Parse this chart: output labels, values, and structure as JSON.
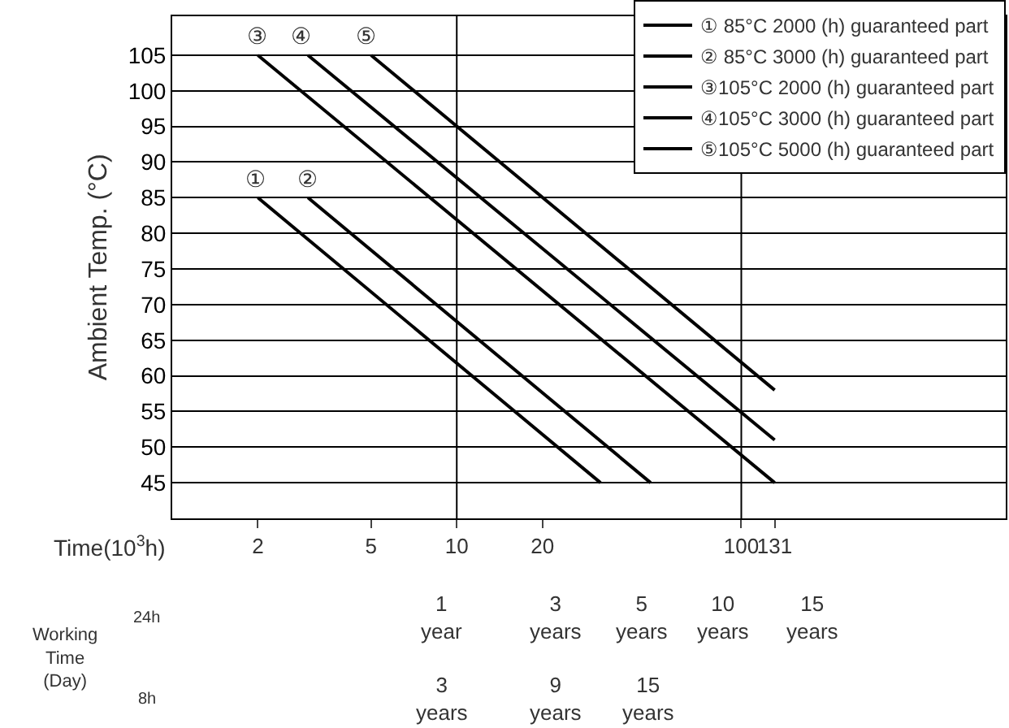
{
  "chart_data": {
    "type": "line",
    "ylabel": "Ambient Temp. (°C)",
    "xlabel": "Time(10$^{3}$h)",
    "log": "x",
    "xlim": [
      1,
      850
    ],
    "xticks": [
      2,
      5,
      10,
      20,
      100,
      131
    ],
    "ylim": [
      40,
      110.5
    ],
    "yticks": [
      45,
      50,
      55,
      60,
      65,
      70,
      75,
      80,
      85,
      90,
      95,
      100,
      105
    ],
    "grid": "y",
    "legend": "top right",
    "marker": "none",
    "line_style": "solid",
    "series": [
      {
        "name": "① 85°C 2000 (h) guaranteed part",
        "color": "#000000",
        "x": [
          2,
          32
        ],
        "values": [
          85,
          45
        ]
      },
      {
        "name": "② 85°C 3000 (h) guaranteed part",
        "color": "#000000",
        "x": [
          3,
          48
        ],
        "values": [
          85,
          45
        ]
      },
      {
        "name": "③105°C 2000 (h) guaranteed part",
        "color": "#000000",
        "x": [
          2,
          131
        ],
        "values": [
          105,
          45
        ]
      },
      {
        "name": "④105°C 3000 (h) guaranteed part",
        "color": "#000000",
        "x": [
          3,
          131
        ],
        "values": [
          105,
          51
        ]
      },
      {
        "name": "⑤105°C 5000 (h) guaranteed part",
        "color": "#000000",
        "x": [
          5,
          131
        ],
        "values": [
          105,
          58
        ]
      }
    ],
    "ref_lines": [
      {
        "axis": "x",
        "value": 10,
        "color": "#000000"
      },
      {
        "axis": "x",
        "value": 100,
        "color": "#000000"
      }
    ],
    "annotations": [
      "Working\nTime\n(Day)",
      "24h",
      "8h",
      "1\nyear",
      "3\nyears",
      "5\nyears",
      "10\nyears",
      "15\nyears",
      "3\nyears",
      "9\nyears",
      "15\nyears",
      "①",
      "②",
      "③",
      "④",
      "⑤"
    ]
  }
}
